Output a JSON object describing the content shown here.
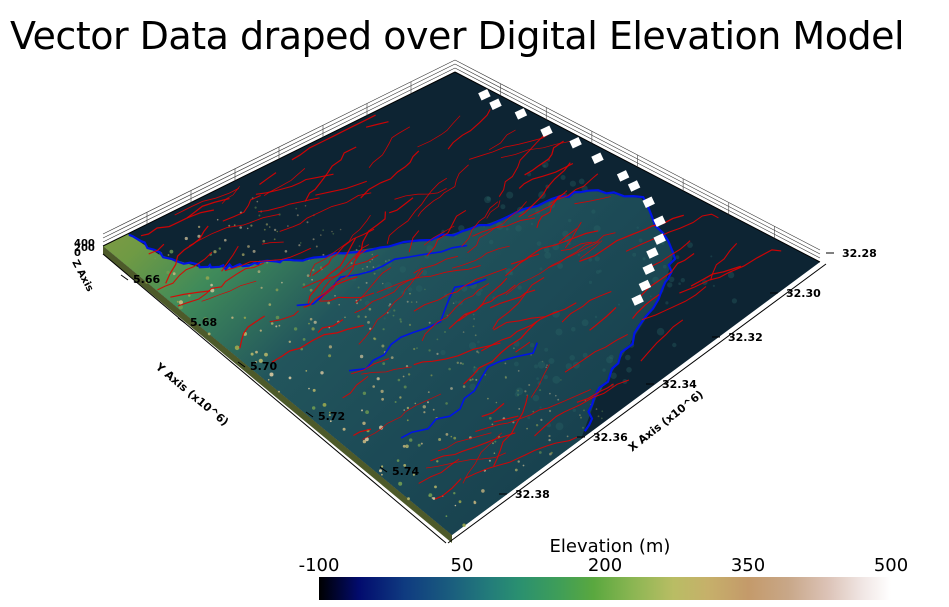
{
  "title": "Vector Data draped over Digital Elevation Model",
  "chart_data": {
    "type": "heatmap",
    "title": "Vector Data draped over Digital Elevation Model",
    "x_axis": {
      "label": "X Axis (x10^6)",
      "ticks": [
        "32.28",
        "32.30",
        "32.32",
        "32.34",
        "32.36",
        "32.38"
      ],
      "range": [
        32.27,
        32.39
      ]
    },
    "y_axis": {
      "label": "Y Axis (x10^6)",
      "ticks": [
        "5.66",
        "5.68",
        "5.70",
        "5.72",
        "5.74"
      ],
      "range": [
        5.65,
        5.75
      ]
    },
    "z_axis": {
      "label": "Z Axis",
      "ticks": [
        "400",
        "200",
        "0"
      ]
    },
    "colorbar": {
      "label": "Elevation (m)",
      "ticks": [
        "-100",
        "50",
        "200",
        "350",
        "500"
      ],
      "range": [
        -100,
        500
      ],
      "colors": [
        "#000000",
        "#020b6e",
        "#237d7a",
        "#5aa83f",
        "#b9bd64",
        "#c49a6a",
        "#f0e6e4",
        "#ffffff"
      ]
    },
    "layers": [
      {
        "kind": "surface",
        "note": "DEM terrain colored by elevation"
      },
      {
        "kind": "lines",
        "color": "#e00000"
      },
      {
        "kind": "lines",
        "color": "#0014e6"
      },
      {
        "kind": "markers",
        "color": "#ffffff"
      }
    ],
    "background": "#0d2433",
    "grid": false
  }
}
